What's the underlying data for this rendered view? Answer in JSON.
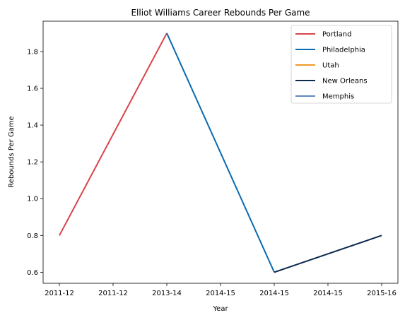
{
  "chart_data": {
    "type": "line",
    "title": "Elliot Williams Career Rebounds Per Game",
    "xlabel": "Year",
    "ylabel": "Rebounds Per Game",
    "categories": [
      "2011-12",
      "2011-12",
      "2013-14",
      "2014-15",
      "2014-15",
      "2014-15",
      "2015-16"
    ],
    "ylim": [
      0.54,
      1.965
    ],
    "yticks": [
      0.6,
      0.8,
      1.0,
      1.2,
      1.4,
      1.6,
      1.8
    ],
    "ytick_labels": [
      "0.6",
      "0.8",
      "1.0",
      "1.2",
      "1.4",
      "1.6",
      "1.8"
    ],
    "grid": false,
    "legend_position": "top-right",
    "series": [
      {
        "name": "Portland",
        "color": "#d9434a",
        "x": [
          0,
          2
        ],
        "y": [
          0.8,
          1.9
        ]
      },
      {
        "name": "Philadelphia",
        "color": "#0a6bb0",
        "x": [
          2,
          4
        ],
        "y": [
          1.9,
          0.6
        ]
      },
      {
        "name": "Utah",
        "color": "#f29b26",
        "x": [],
        "y": []
      },
      {
        "name": "New Orleans",
        "color": "#0b2a4d",
        "x": [
          4,
          6
        ],
        "y": [
          0.6,
          0.8
        ]
      },
      {
        "name": "Memphis",
        "color": "#6189c4",
        "x": [],
        "y": []
      }
    ]
  }
}
